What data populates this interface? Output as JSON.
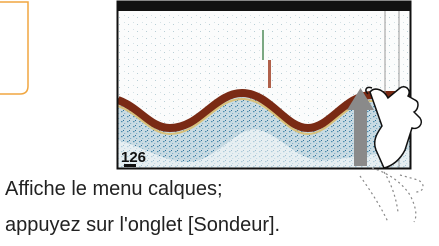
{
  "screen": {
    "depth": "126"
  },
  "caption": {
    "lines": [
      "Affiche le menu calques;",
      "appuyez sur l'onglet [Sondeur]."
    ]
  }
}
